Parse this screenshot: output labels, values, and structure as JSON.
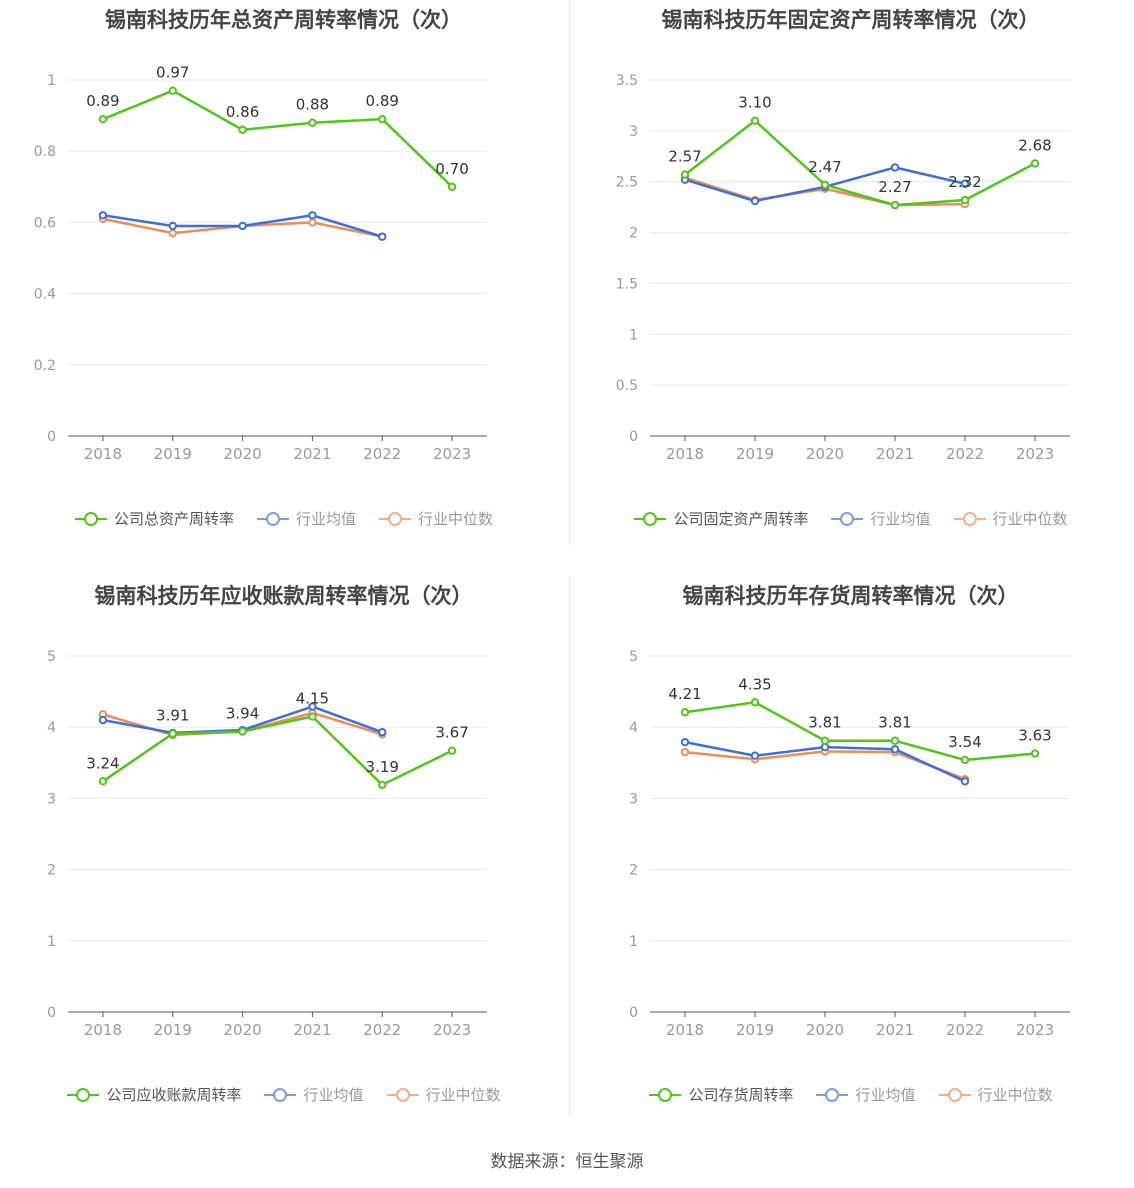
{
  "source": "数据来源：恒生聚源",
  "series_names": {
    "avg": "行业均值",
    "median": "行业中位数"
  },
  "colors": {
    "company": "#52c41a",
    "avg": "#3f6fd6",
    "median": "#ef8a5a",
    "grid": "#e6e9f0",
    "axis": "#555",
    "tick": "#999"
  },
  "chart_data": [
    {
      "type": "line",
      "title": "锡南科技历年总资产周转率情况（次）",
      "categories": [
        "2018",
        "2019",
        "2020",
        "2021",
        "2022",
        "2023"
      ],
      "ylim": [
        0,
        1
      ],
      "yticks": [
        "0",
        "0.2",
        "0.4",
        "0.6",
        "0.8",
        "1"
      ],
      "ytick_values": [
        0,
        0.2,
        0.4,
        0.6,
        0.8,
        1
      ],
      "series": [
        {
          "name": "公司总资产周转率",
          "key": "company",
          "values": [
            0.89,
            0.97,
            0.86,
            0.88,
            0.89,
            0.7
          ],
          "labels": [
            "0.89",
            "0.97",
            "0.86",
            "0.88",
            "0.89",
            "0.70"
          ]
        },
        {
          "name": "行业均值",
          "key": "avg",
          "values": [
            0.62,
            0.59,
            0.59,
            0.62,
            0.56,
            null
          ]
        },
        {
          "name": "行业中位数",
          "key": "median",
          "values": [
            0.61,
            0.57,
            0.59,
            0.6,
            0.56,
            null
          ]
        }
      ]
    },
    {
      "type": "line",
      "title": "锡南科技历年固定资产周转率情况（次）",
      "categories": [
        "2018",
        "2019",
        "2020",
        "2021",
        "2022",
        "2023"
      ],
      "ylim": [
        0,
        3.5
      ],
      "yticks": [
        "0",
        "0.5",
        "1",
        "1.5",
        "2",
        "2.5",
        "3",
        "3.5"
      ],
      "ytick_values": [
        0,
        0.5,
        1,
        1.5,
        2,
        2.5,
        3,
        3.5
      ],
      "series": [
        {
          "name": "公司固定资产周转率",
          "key": "company",
          "values": [
            2.57,
            3.1,
            2.47,
            2.27,
            2.32,
            2.68
          ],
          "labels": [
            "2.57",
            "3.10",
            "2.47",
            "2.27",
            "2.32",
            "2.68"
          ]
        },
        {
          "name": "行业均值",
          "key": "avg",
          "values": [
            2.52,
            2.31,
            2.45,
            2.64,
            2.48,
            null
          ]
        },
        {
          "name": "行业中位数",
          "key": "median",
          "values": [
            2.54,
            2.32,
            2.43,
            2.27,
            2.28,
            null
          ]
        }
      ]
    },
    {
      "type": "line",
      "title": "锡南科技历年应收账款周转率情况（次）",
      "categories": [
        "2018",
        "2019",
        "2020",
        "2021",
        "2022",
        "2023"
      ],
      "ylim": [
        0,
        5
      ],
      "yticks": [
        "0",
        "1",
        "2",
        "3",
        "4",
        "5"
      ],
      "ytick_values": [
        0,
        1,
        2,
        3,
        4,
        5
      ],
      "series": [
        {
          "name": "公司应收账款周转率",
          "key": "company",
          "values": [
            3.24,
            3.91,
            3.94,
            4.15,
            3.19,
            3.67
          ],
          "labels": [
            "3.24",
            "3.91",
            "3.94",
            "4.15",
            "3.19",
            "3.67"
          ]
        },
        {
          "name": "行业均值",
          "key": "avg",
          "values": [
            4.1,
            3.92,
            3.96,
            4.29,
            3.93,
            null
          ]
        },
        {
          "name": "行业中位数",
          "key": "median",
          "values": [
            4.18,
            3.89,
            3.94,
            4.2,
            3.9,
            null
          ]
        }
      ]
    },
    {
      "type": "line",
      "title": "锡南科技历年存货周转率情况（次）",
      "categories": [
        "2018",
        "2019",
        "2020",
        "2021",
        "2022",
        "2023"
      ],
      "ylim": [
        0,
        5
      ],
      "yticks": [
        "0",
        "1",
        "2",
        "3",
        "4",
        "5"
      ],
      "ytick_values": [
        0,
        1,
        2,
        3,
        4,
        5
      ],
      "series": [
        {
          "name": "公司存货周转率",
          "key": "company",
          "values": [
            4.21,
            4.35,
            3.81,
            3.81,
            3.54,
            3.63
          ],
          "labels": [
            "4.21",
            "4.35",
            "3.81",
            "3.81",
            "3.54",
            "3.63"
          ]
        },
        {
          "name": "行业均值",
          "key": "avg",
          "values": [
            3.79,
            3.6,
            3.72,
            3.69,
            3.24,
            null
          ]
        },
        {
          "name": "行业中位数",
          "key": "median",
          "values": [
            3.65,
            3.55,
            3.66,
            3.65,
            3.27,
            null
          ]
        }
      ]
    }
  ]
}
